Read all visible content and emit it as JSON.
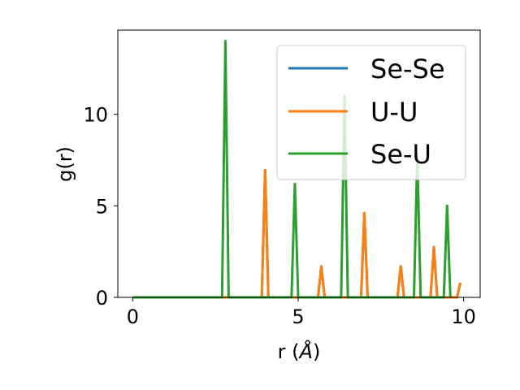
{
  "chart_data": {
    "type": "line",
    "xlabel_main": "r (",
    "xlabel_unit": "Å",
    "xlabel_close": ")",
    "ylabel": "g(r)",
    "xlim": [
      -0.45,
      10.5
    ],
    "ylim": [
      0,
      14.6
    ],
    "xticks": [
      0,
      5,
      10
    ],
    "yticks": [
      0,
      5,
      10
    ],
    "grid": false,
    "legend_position": "top-right",
    "series": [
      {
        "name": "Se-Se",
        "color": "#1f77b4",
        "x": [
          0,
          3.9,
          4.0,
          4.1,
          5.6,
          5.7,
          5.8,
          6.9,
          7.0,
          7.1,
          8.0,
          8.1,
          8.2,
          9.0,
          9.1,
          9.2,
          9.8,
          9.9
        ],
        "y": [
          0,
          0,
          6.95,
          0,
          0,
          1.7,
          0,
          0,
          4.6,
          0,
          0,
          1.7,
          0,
          0,
          2.75,
          0,
          0,
          0.8
        ]
      },
      {
        "name": "U-U",
        "color": "#ff7f0e",
        "x": [
          0,
          3.9,
          4.0,
          4.1,
          5.6,
          5.7,
          5.8,
          6.9,
          7.0,
          7.1,
          8.0,
          8.1,
          8.2,
          9.0,
          9.1,
          9.2,
          9.8,
          9.9
        ],
        "y": [
          0,
          0,
          6.95,
          0,
          0,
          1.7,
          0,
          0,
          4.6,
          0,
          0,
          1.7,
          0,
          0,
          2.75,
          0,
          0,
          0.8
        ]
      },
      {
        "name": "Se-U",
        "color": "#2ca02c",
        "x": [
          0,
          2.7,
          2.8,
          2.9,
          4.8,
          4.9,
          5.0,
          6.3,
          6.4,
          6.5,
          8.5,
          8.6,
          8.7,
          9.4,
          9.5,
          9.6
        ],
        "y": [
          0,
          0,
          14.0,
          0,
          0,
          6.2,
          0,
          0,
          11.0,
          0,
          0,
          7.8,
          0,
          0,
          5.0,
          0
        ]
      }
    ]
  }
}
